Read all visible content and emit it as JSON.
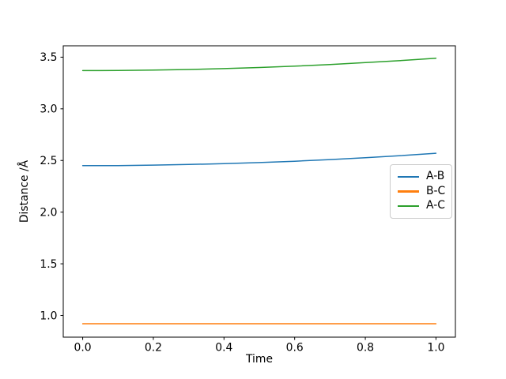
{
  "figure": {
    "background": "#ffffff",
    "text_color": "#000000",
    "spine_color": "#000000",
    "legend_border_color": "#cccccc"
  },
  "chart_data": {
    "type": "line",
    "title": "",
    "xlabel": "Time",
    "ylabel": "Distance /Å",
    "grid": false,
    "legend_position": "center right",
    "xlim": [
      -0.055,
      1.055
    ],
    "ylim": [
      0.79,
      3.61
    ],
    "xticks": {
      "values": [
        0.0,
        0.2,
        0.4,
        0.6,
        0.8,
        1.0
      ],
      "labels": [
        "0.0",
        "0.2",
        "0.4",
        "0.6",
        "0.8",
        "1.0"
      ]
    },
    "yticks": {
      "values": [
        1.0,
        1.5,
        2.0,
        2.5,
        3.0,
        3.5
      ],
      "labels": [
        "1.0",
        "1.5",
        "2.0",
        "2.5",
        "3.0",
        "3.5"
      ]
    },
    "x": [
      0.0,
      0.1,
      0.2,
      0.3,
      0.4,
      0.5,
      0.6,
      0.7,
      0.8,
      0.9,
      1.0
    ],
    "series": [
      {
        "name": "A-B",
        "color": "#1f77b4",
        "values": [
          2.45,
          2.451,
          2.455,
          2.461,
          2.469,
          2.48,
          2.493,
          2.509,
          2.527,
          2.547,
          2.57
        ]
      },
      {
        "name": "B-C",
        "color": "#ff7f0e",
        "values": [
          0.92,
          0.92,
          0.92,
          0.92,
          0.92,
          0.92,
          0.92,
          0.92,
          0.92,
          0.92,
          0.92
        ]
      },
      {
        "name": "A-C",
        "color": "#2ca02c",
        "values": [
          3.37,
          3.371,
          3.375,
          3.381,
          3.389,
          3.4,
          3.413,
          3.429,
          3.447,
          3.467,
          3.49
        ]
      }
    ]
  }
}
